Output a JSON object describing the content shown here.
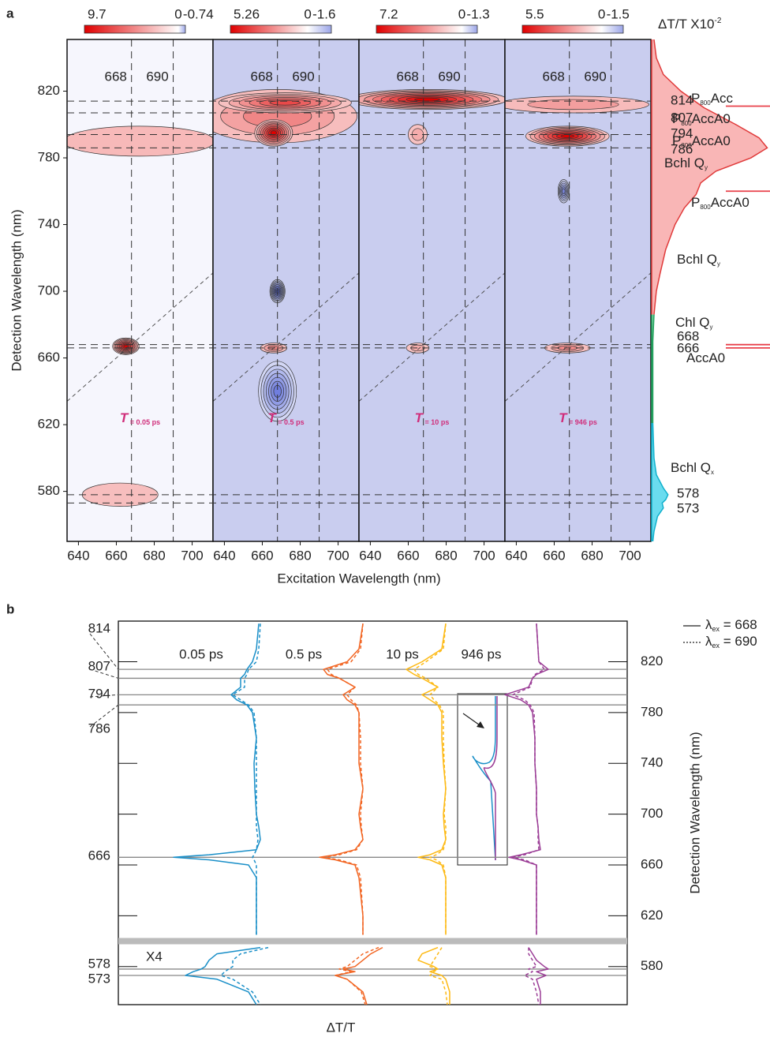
{
  "figure_labels": [
    "a",
    "b"
  ],
  "chart_data": [
    {
      "type": "contour",
      "xlabel": "Excitation Wavelength (nm)",
      "ylabel": "Detection Wavelength (nm)",
      "xlim": [
        634,
        711
      ],
      "ylim": [
        550,
        851
      ],
      "xticks": [
        640,
        660,
        680,
        700
      ],
      "yticks": [
        580,
        620,
        660,
        700,
        740,
        780,
        820
      ],
      "colorbar_label": [
        "ΔT/T X10",
        "-2"
      ],
      "excitation_lines": [
        668,
        690
      ],
      "detection_lines": [
        814,
        807,
        794,
        786,
        668,
        666,
        578,
        573
      ],
      "diagonal": true,
      "panels": [
        {
          "time": [
            "T",
            " = 0.05 ps"
          ],
          "colorbar": [
            9.7,
            0,
            -0.74
          ],
          "background": "#f6f6fd",
          "peaks": [
            {
              "ex": 672,
              "det": 790,
              "value": 1.4,
              "ex_width": 40,
              "det_width": 9
            },
            {
              "ex": 662,
              "det": 578,
              "value": 1.2,
              "ex_width": 20,
              "det_width": 7
            },
            {
              "ex": 665,
              "det": 667,
              "value": 9.7,
              "ex_width": 7,
              "det_width": 5
            }
          ]
        },
        {
          "time": [
            "T",
            " = 0.5 ps"
          ],
          "colorbar": [
            5.26,
            0,
            -1.6
          ],
          "background": "#c9cdef",
          "peaks": [
            {
              "ex": 668,
              "det": 700,
              "value": -1.6,
              "ex_width": 4,
              "det_width": 7
            },
            {
              "ex": 668,
              "det": 640,
              "value": -1.2,
              "ex_width": 10,
              "det_width": 18
            },
            {
              "ex": 668,
              "det": 805,
              "value": 2.0,
              "ex_width": 42,
              "det_width": 16
            },
            {
              "ex": 672,
              "det": 813,
              "value": 3.5,
              "ex_width": 35,
              "det_width": 6
            },
            {
              "ex": 666,
              "det": 795,
              "value": 5.26,
              "ex_width": 10,
              "det_width": 8
            },
            {
              "ex": 666,
              "det": 666,
              "value": 2.0,
              "ex_width": 7,
              "det_width": 3
            }
          ]
        },
        {
          "time": [
            "T",
            " = 10 ps"
          ],
          "colorbar": [
            7.2,
            0,
            -1.3
          ],
          "background": "#c9cdef",
          "peaks": [
            {
              "ex": 670,
              "det": 815,
              "value": 7.2,
              "ex_width": 42,
              "det_width": 6
            },
            {
              "ex": 665,
              "det": 794,
              "value": 1.5,
              "ex_width": 5,
              "det_width": 6
            },
            {
              "ex": 665,
              "det": 666,
              "value": 1.5,
              "ex_width": 6,
              "det_width": 3
            }
          ]
        },
        {
          "time": [
            "T",
            " = 946 ps"
          ],
          "colorbar": [
            5.5,
            0,
            -1.5
          ],
          "background": "#c9cdef",
          "peaks": [
            {
              "ex": 665,
              "det": 760,
              "value": -1.0,
              "ex_width": 3,
              "det_width": 7
            },
            {
              "ex": 670,
              "det": 812,
              "value": 1.5,
              "ex_width": 40,
              "det_width": 5
            },
            {
              "ex": 667,
              "det": 793,
              "value": 5.5,
              "ex_width": 22,
              "det_width": 6
            },
            {
              "ex": 667,
              "det": 666,
              "value": 2.0,
              "ex_width": 12,
              "det_width": 3
            }
          ]
        }
      ],
      "spectrum": {
        "wavelengths": [
          851,
          840,
          830,
          820,
          810,
          800,
          792,
          786,
          780,
          772,
          765,
          758,
          750,
          740,
          725,
          710,
          700,
          686,
          670,
          650,
          621,
          600,
          590,
          582,
          578,
          575,
          573,
          570,
          565,
          556,
          550
        ],
        "values": [
          0.02,
          0.04,
          0.1,
          0.25,
          0.45,
          0.72,
          0.92,
          0.99,
          0.85,
          0.55,
          0.42,
          0.38,
          0.28,
          0.2,
          0.12,
          0.07,
          0.04,
          0.02,
          0.01,
          0.01,
          0.01,
          0.02,
          0.04,
          0.1,
          0.14,
          0.12,
          0.09,
          0.1,
          0.05,
          0.02,
          0.01
        ],
        "bands": [
          {
            "from": 686,
            "to": 851,
            "color": "#f9b6b6",
            "edge": "#e03a3a"
          },
          {
            "from": 621,
            "to": 686,
            "color": "#86d9aa",
            "edge": "#1f9e5a"
          },
          {
            "from": 550,
            "to": 621,
            "color": "#6adcef",
            "edge": "#10b0cc"
          }
        ],
        "marker_lines": [
          811,
          760,
          668,
          666
        ],
        "marker_color": "#e8404a",
        "labels": [
          [
            "P",
            "800",
            "Acc"
          ],
          [
            "P",
            "800",
            "AccA0"
          ],
          [
            "P",
            "800",
            "AccA0"
          ],
          [
            "Bchl Q",
            "y"
          ],
          [
            "P",
            "800",
            "AccA0"
          ],
          [
            "Bchl Q",
            "y"
          ],
          [
            "Chl Q",
            "y"
          ],
          [
            "AccA0"
          ],
          [
            "Bchl Q",
            "x"
          ]
        ]
      }
    },
    {
      "type": "line",
      "xlabel": "ΔT/T",
      "ylabel": "Detection Wavelength (nm)",
      "ylim": [
        550,
        852
      ],
      "yticks": [
        580,
        620,
        660,
        700,
        740,
        780,
        820
      ],
      "marked": [
        814,
        807,
        794,
        786,
        666,
        578,
        573
      ],
      "break_at": 600,
      "scale_note": "X4",
      "legend": [
        [
          "λ",
          "ex",
          " = 668"
        ],
        [
          "λ",
          "ex",
          " = 690"
        ]
      ],
      "y": [
        850,
        830,
        820,
        814,
        810,
        807,
        800,
        794,
        790,
        786,
        780,
        760,
        740,
        720,
        700,
        690,
        680,
        672,
        668,
        666,
        664,
        660,
        650,
        620,
        605,
        600,
        595,
        590,
        585,
        580,
        578,
        576,
        573,
        570,
        560,
        550
      ],
      "panels": [
        {
          "label": "0.05 ps",
          "color": "#1a8fc8",
          "values_668": [
            0.03,
            0,
            -0.05,
            -0.12,
            -0.15,
            -0.2,
            -0.2,
            -0.32,
            -0.25,
            -0.12,
            -0.05,
            0,
            -0.03,
            -0.02,
            0,
            0.03,
            0.05,
            0,
            -0.6,
            -1.05,
            -0.6,
            -0.1,
            0,
            0,
            0,
            null,
            0.05,
            -0.5,
            -0.6,
            -0.65,
            -0.7,
            -0.8,
            -0.9,
            -0.5,
            -0.1,
            0
          ],
          "values_690": [
            0.05,
            0.03,
            0,
            -0.1,
            -0.12,
            -0.15,
            -0.15,
            -0.3,
            -0.2,
            -0.1,
            -0.03,
            0,
            0,
            0,
            0,
            0,
            0.02,
            0,
            -0.03,
            -0.05,
            -0.03,
            0,
            0,
            0,
            0,
            null,
            0.15,
            -0.2,
            -0.3,
            -0.3,
            -0.35,
            -0.4,
            -0.45,
            -0.3,
            -0.05,
            0.05
          ]
        },
        {
          "label": "0.5 ps",
          "color": "#f26522",
          "values_668": [
            0,
            -0.05,
            -0.2,
            -0.5,
            -0.45,
            -0.3,
            -0.1,
            -0.25,
            -0.2,
            -0.1,
            -0.05,
            -0.05,
            -0.05,
            0,
            -0.05,
            -0.03,
            0,
            -0.1,
            -0.35,
            -0.55,
            -0.35,
            -0.1,
            -0.05,
            0,
            0,
            null,
            0.25,
            0.1,
            0,
            -0.1,
            -0.25,
            -0.1,
            -0.35,
            -0.2,
            0,
            0.05
          ],
          "values_690": [
            0,
            -0.03,
            -0.15,
            -0.45,
            -0.4,
            -0.3,
            -0.1,
            -0.2,
            -0.15,
            -0.08,
            -0.05,
            -0.03,
            -0.03,
            0,
            -0.03,
            -0.02,
            0,
            -0.08,
            -0.3,
            -0.5,
            -0.3,
            -0.08,
            -0.03,
            0,
            0,
            null,
            0.2,
            0,
            -0.1,
            -0.2,
            -0.3,
            -0.15,
            -0.35,
            -0.2,
            -0.02,
            0.03
          ]
        },
        {
          "label": "10 ps",
          "color": "#fdb913",
          "values_668": [
            0,
            -0.05,
            -0.3,
            -0.5,
            -0.4,
            -0.3,
            -0.1,
            -0.3,
            -0.2,
            -0.1,
            -0.05,
            -0.05,
            -0.03,
            0,
            -0.03,
            -0.02,
            0,
            -0.05,
            -0.2,
            -0.35,
            -0.2,
            -0.05,
            0,
            0,
            0,
            null,
            -0.1,
            -0.3,
            -0.35,
            -0.15,
            -0.1,
            -0.2,
            -0.05,
            0,
            0.05,
            0.05
          ],
          "values_690": [
            0,
            -0.03,
            -0.25,
            -0.4,
            -0.35,
            -0.25,
            -0.1,
            -0.2,
            -0.15,
            -0.08,
            -0.03,
            -0.03,
            -0.02,
            0,
            -0.02,
            0,
            0,
            -0.03,
            -0.12,
            -0.2,
            -0.12,
            -0.03,
            0,
            0,
            0,
            null,
            -0.05,
            -0.1,
            -0.15,
            -0.2,
            -0.1,
            -0.15,
            -0.2,
            -0.05,
            0,
            0.02
          ]
        },
        {
          "label": "946 ps",
          "color": "#9b3d96",
          "values_668": [
            0,
            0.02,
            0.03,
            0.15,
            0,
            -0.05,
            -0.1,
            -0.4,
            -0.2,
            -0.1,
            -0.05,
            -0.02,
            -0.02,
            0,
            0,
            0.02,
            0.03,
            0.05,
            -0.2,
            -0.35,
            -0.2,
            0,
            0,
            0,
            0,
            null,
            -0.1,
            -0.05,
            0,
            0.1,
            0.15,
            0,
            0.12,
            0,
            0.05,
            0.05
          ],
          "values_690": [
            0,
            0.02,
            0.03,
            0.1,
            -0.02,
            -0.05,
            -0.08,
            -0.3,
            -0.15,
            -0.08,
            -0.03,
            -0.02,
            -0.02,
            0,
            0,
            0.02,
            0.02,
            0.03,
            -0.15,
            -0.3,
            -0.15,
            0,
            0,
            0,
            0,
            null,
            -0.1,
            -0.1,
            -0.05,
            0,
            -0.1,
            -0.05,
            -0.15,
            -0.05,
            0,
            0.03
          ]
        }
      ]
    }
  ]
}
